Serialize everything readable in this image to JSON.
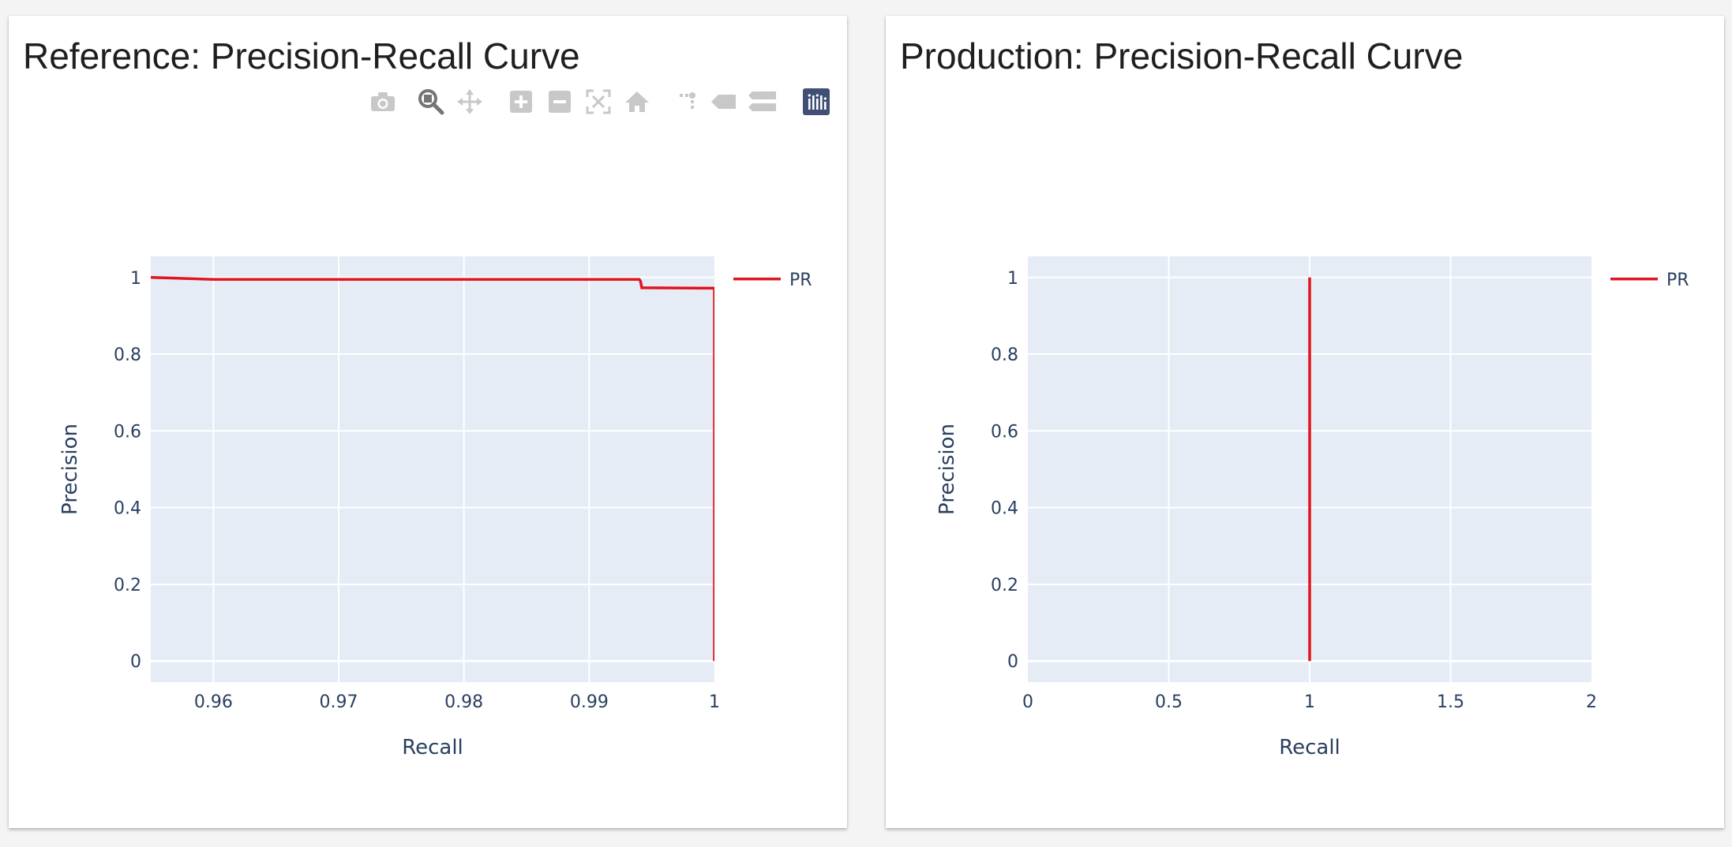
{
  "panels": [
    {
      "title": "Reference: Precision-Recall Curve",
      "has_modebar": true
    },
    {
      "title": "Production: Precision-Recall Curve",
      "has_modebar": false
    }
  ],
  "modebar": [
    {
      "name": "camera-icon",
      "label": "Download plot as a png",
      "active": false
    },
    {
      "name": "zoom-icon",
      "label": "Zoom",
      "active": true
    },
    {
      "name": "pan-icon",
      "label": "Pan",
      "active": false
    },
    {
      "name": "zoom-in-icon",
      "label": "Zoom in",
      "active": false
    },
    {
      "name": "zoom-out-icon",
      "label": "Zoom out",
      "active": false
    },
    {
      "name": "autoscale-icon",
      "label": "Autoscale",
      "active": false
    },
    {
      "name": "home-icon",
      "label": "Reset axes",
      "active": false
    },
    {
      "name": "spike-lines-icon",
      "label": "Toggle Spike Lines",
      "active": false
    },
    {
      "name": "hover-closest-icon",
      "label": "Show closest data on hover",
      "active": false
    },
    {
      "name": "hover-compare-icon",
      "label": "Compare data on hover",
      "active": false
    },
    {
      "name": "plotly-logo-icon",
      "label": "Produced with Plotly",
      "active": false
    }
  ],
  "colors": {
    "line": "#e0141e",
    "plot_bg": "#e5ecf6",
    "grid": "#ffffff",
    "axis_text": "#2a3f5f",
    "modebar_icon": "#c8c8c8",
    "modebar_active": "#767676",
    "logo_bg": "#3f4f75"
  },
  "chart_data": [
    {
      "type": "line",
      "title": "Reference: Precision-Recall Curve",
      "xlabel": "Recall",
      "ylabel": "Precision",
      "xlim": [
        0.955,
        1.0
      ],
      "ylim": [
        -0.055,
        1.055
      ],
      "x_ticks": [
        0.96,
        0.97,
        0.98,
        0.99,
        1
      ],
      "x_tick_labels": [
        "0.96",
        "0.97",
        "0.98",
        "0.99",
        "1"
      ],
      "y_ticks": [
        0,
        0.2,
        0.4,
        0.6,
        0.8,
        1
      ],
      "y_tick_labels": [
        "0",
        "0.2",
        "0.4",
        "0.6",
        "0.8",
        "1"
      ],
      "grid": true,
      "legend_position": "top-right",
      "series": [
        {
          "name": "PR",
          "color": "#e0141e",
          "x": [
            0.955,
            0.96,
            0.994,
            0.9941,
            0.9942,
            0.99975,
            1.0,
            1.0
          ],
          "y": [
            1.0,
            0.995,
            0.995,
            0.99,
            0.973,
            0.972,
            0.972,
            0.0
          ]
        }
      ]
    },
    {
      "type": "line",
      "title": "Production: Precision-Recall Curve",
      "xlabel": "Recall",
      "ylabel": "Precision",
      "xlim": [
        0,
        2
      ],
      "ylim": [
        -0.055,
        1.055
      ],
      "x_ticks": [
        0,
        0.5,
        1,
        1.5,
        2
      ],
      "x_tick_labels": [
        "0",
        "0.5",
        "1",
        "1.5",
        "2"
      ],
      "y_ticks": [
        0,
        0.2,
        0.4,
        0.6,
        0.8,
        1
      ],
      "y_tick_labels": [
        "0",
        "0.2",
        "0.4",
        "0.6",
        "0.8",
        "1"
      ],
      "grid": true,
      "legend_position": "top-right",
      "series": [
        {
          "name": "PR",
          "color": "#e0141e",
          "x": [
            1,
            1
          ],
          "y": [
            1,
            0
          ]
        }
      ]
    }
  ]
}
